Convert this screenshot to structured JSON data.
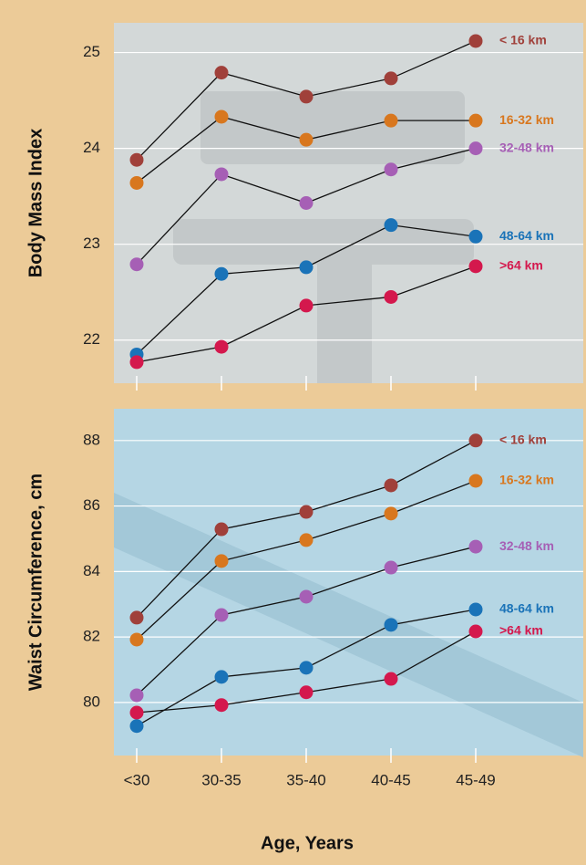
{
  "chart_data": [
    {
      "type": "line",
      "y_label": "Body Mass Index",
      "categories": [
        null,
        null,
        null,
        null,
        null
      ],
      "ylim": [
        21.55,
        25.31
      ],
      "yticks": [
        22,
        23,
        24,
        25
      ],
      "grid": true,
      "background": "#d3d8d8",
      "series": [
        {
          "name": "< 16 km",
          "color": "#a0403a",
          "values": [
            23.88,
            24.79,
            24.54,
            24.73,
            25.12
          ]
        },
        {
          "name": "16-32 km",
          "color": "#d8771e",
          "values": [
            23.64,
            24.33,
            24.09,
            24.29,
            24.29
          ]
        },
        {
          "name": "32-48 km",
          "color": "#a65fb5",
          "values": [
            22.79,
            23.73,
            23.43,
            23.78,
            24.0
          ]
        },
        {
          "name": "48-64 km",
          "color": "#1a73b8",
          "values": [
            21.85,
            22.69,
            22.76,
            23.2,
            23.08
          ]
        },
        {
          "name": ">64 km",
          "color": "#d4184d",
          "values": [
            21.77,
            21.93,
            22.36,
            22.45,
            22.77
          ]
        }
      ]
    },
    {
      "type": "line",
      "y_label": "Waist Circumference, cm",
      "x_label": "Age, Years",
      "categories": [
        "<30",
        "30-35",
        "35-40",
        "40-45",
        "45-49"
      ],
      "ylim": [
        78.38,
        88.97
      ],
      "yticks": [
        80,
        82,
        84,
        86,
        88
      ],
      "grid": true,
      "background": "#b5d6e4",
      "series": [
        {
          "name": "< 16 km",
          "color": "#a0403a",
          "values": [
            82.59,
            85.29,
            85.82,
            86.63,
            88.0
          ]
        },
        {
          "name": "16-32 km",
          "color": "#d8771e",
          "values": [
            81.92,
            84.32,
            84.96,
            85.77,
            86.77
          ]
        },
        {
          "name": "32-48 km",
          "color": "#a65fb5",
          "values": [
            80.22,
            82.67,
            83.23,
            84.12,
            84.76
          ]
        },
        {
          "name": "48-64 km",
          "color": "#1a73b8",
          "values": [
            79.28,
            80.78,
            81.06,
            82.37,
            82.84
          ]
        },
        {
          "name": ">64 km",
          "color": "#d4184d",
          "values": [
            79.69,
            79.92,
            80.31,
            80.72,
            82.17
          ]
        }
      ]
    }
  ]
}
